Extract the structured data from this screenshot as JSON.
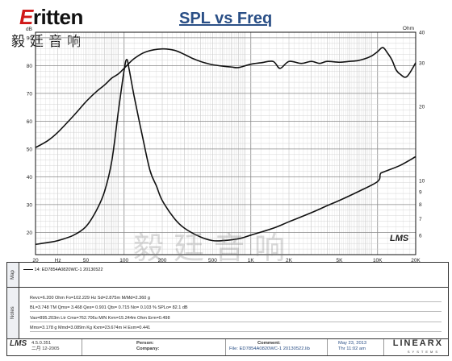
{
  "header": {
    "brand_word": "ritten",
    "brand_initial": "E",
    "brand_cn": "毅廷音响",
    "title": "SPL vs Freq",
    "watermark": "毅廷音响",
    "lms_mark": "LMS"
  },
  "chart_data": {
    "type": "line",
    "title": "SPL vs Freq",
    "x_scale": "log",
    "xlim": [
      20,
      20000
    ],
    "x_ticks": [
      "20",
      "Hz",
      "50",
      "100",
      "200",
      "500",
      "1K",
      "2K",
      "5K",
      "10K",
      "20K"
    ],
    "x_tick_values": [
      20,
      30,
      50,
      100,
      200,
      500,
      1000,
      2000,
      5000,
      10000,
      20000
    ],
    "y_left": {
      "label": "dB",
      "ylim": [
        12,
        92
      ],
      "ticks": [
        20,
        30,
        40,
        50,
        60,
        70,
        80,
        90
      ]
    },
    "y_right": {
      "label": "Ohm",
      "ylim": [
        5,
        40
      ],
      "ticks": [
        6,
        7,
        8,
        9,
        10,
        20,
        30,
        40
      ],
      "ticks_minor": [
        15,
        25,
        35
      ]
    },
    "grid": true,
    "series": [
      {
        "name": "",
        "role": "spl",
        "axis": "left",
        "color": "#111111",
        "x": [
          20,
          25,
          30,
          40,
          50,
          60,
          70,
          80,
          90,
          100,
          120,
          150,
          200,
          250,
          300,
          350,
          400,
          450,
          500,
          600,
          700,
          800,
          1000,
          1200,
          1500,
          1700,
          2000,
          2500,
          3000,
          3500,
          4000,
          5000,
          6000,
          7000,
          8000,
          9000,
          10000,
          11000,
          12000,
          13000,
          14000,
          15000,
          17000,
          20000
        ],
        "values": [
          50.5,
          53,
          56,
          62,
          67,
          70.5,
          73,
          75.5,
          77,
          79,
          82.5,
          85,
          86,
          85.5,
          84,
          82.5,
          81.5,
          80.8,
          80.3,
          79.8,
          79.5,
          79.3,
          80.5,
          81,
          81.5,
          79,
          81.5,
          80.8,
          81.5,
          80.8,
          81.5,
          81.2,
          81.5,
          81.8,
          82.5,
          83.5,
          85,
          86.5,
          84.5,
          82,
          78.5,
          77,
          76,
          81
        ]
      },
      {
        "name": "",
        "role": "impedance",
        "axis": "right",
        "color": "#111111",
        "x": [
          20,
          25,
          30,
          40,
          50,
          60,
          70,
          80,
          90,
          100,
          105,
          110,
          120,
          140,
          160,
          180,
          200,
          250,
          300,
          400,
          500,
          600,
          800,
          1000,
          1500,
          2000,
          3000,
          4000,
          5000,
          7000,
          10000,
          10500,
          11000,
          15000,
          20000
        ],
        "values": [
          5.5,
          5.6,
          5.7,
          6.0,
          6.5,
          7.5,
          9.0,
          12,
          19,
          28,
          31,
          28,
          22,
          15,
          11,
          9.5,
          8.3,
          7.0,
          6.4,
          5.9,
          5.7,
          5.7,
          5.8,
          6.0,
          6.4,
          6.8,
          7.4,
          7.9,
          8.3,
          9.0,
          9.9,
          10.6,
          10.8,
          11.5,
          12.5
        ]
      }
    ]
  },
  "panel": {
    "map_label": "Map",
    "notes_label": "Notes",
    "legend_line": "14: ED7854A0820WC-1  20130522",
    "notes": [
      "Revc=6.200 Ohm  Fo=102.229 Hz  Sd=2.875m M/Md=2.360 g",
      "BL=3.748 TM  Qms= 3.468  Qes= 0.901  Qts= 0.715  No= 0.103 %  SPLo= 82.1 dB",
      "Vas=895.203m Ltr  Cms=762.706u M/N  Krm=15.244m Ohm  Erm=0.498",
      "Mms=3.178 g  Mmd=3.089m Kg  Kxm=23.674m H  Exm=0.441"
    ],
    "footer": {
      "app_name": "LMS",
      "version": "4.5.0.351",
      "version_date": "二月 12-2005",
      "person_label": "Person:",
      "company_label": "Company:",
      "comment_label": "Comment:",
      "file_label": "File: ED7854A0820WC-1  20130522.lib",
      "date": "May 23, 2013",
      "time": "Thr 11:02 am",
      "vendor": "LINEARX",
      "vendor_sub": "SYSTEMS"
    }
  }
}
